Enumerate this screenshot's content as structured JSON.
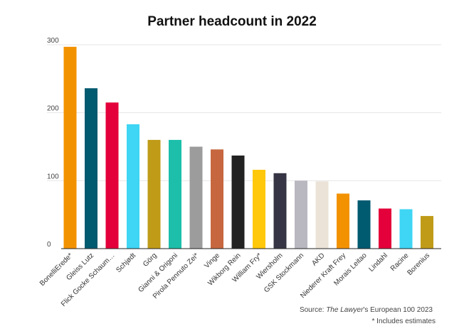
{
  "chart_data": {
    "type": "bar",
    "title": "Partner headcount in 2022",
    "xlabel": "",
    "ylabel": "",
    "ylim": [
      0,
      300
    ],
    "yticks": [
      "0",
      "100",
      "200",
      "300"
    ],
    "grid": true,
    "categories": [
      "BonelliErede*",
      "Gleiss Lutz",
      "Flick Gocke Schaum…",
      "Schjødt",
      "Görg",
      "Gianni & Origoni",
      "Pirola Pennuto Zei*",
      "Vinge",
      "Wikborg Rein",
      "William Fry*",
      "Wiersholm",
      "GSK Stockmann",
      "AKD",
      "Niederer Kraft Frey",
      "Morais Leitao",
      "Lindahl",
      "Racine",
      "Borenius"
    ],
    "values": [
      297,
      236,
      215,
      183,
      160,
      160,
      150,
      146,
      137,
      116,
      111,
      100,
      99,
      81,
      71,
      59,
      58,
      48
    ],
    "colors": [
      "#f39200",
      "#005a70",
      "#e4003a",
      "#3fd5f4",
      "#bf9b18",
      "#1dbfaa",
      "#9c9c9c",
      "#c7673f",
      "#222222",
      "#ffc80a",
      "#353545",
      "#b9b7c0",
      "#ebe3d7",
      "#f39200",
      "#005a70",
      "#e4003a",
      "#3fd5f4",
      "#bf9b18"
    ]
  },
  "source": {
    "prefix": "Source: ",
    "publication": "The Lawyer",
    "suffix": "'s European 100 2023"
  },
  "footnote": "* Includes estimates"
}
